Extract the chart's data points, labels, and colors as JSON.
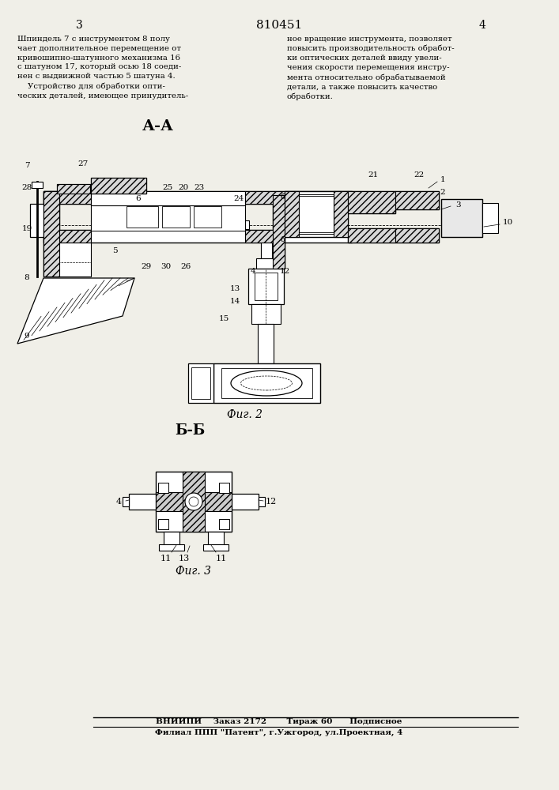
{
  "bg_color": "#f0efe8",
  "page_number_left": "3",
  "page_number_center": "810451",
  "page_number_right": "4",
  "left_text": "Шпиндель 7 с инструментом 8 полу\nчает дополнительное перемещение от\nкривошипно-шатунного механизма 16\nс шатуном 17, который осью 18 соеди-\nнен с выдвижной частью 5 шатуна 4.\n    Устройство для обработки опти-\nческих деталей, имеющее принудитель-",
  "right_text": "ное вращение инструмента, позволяет\nповысить производительность обработ-\nки оптических деталей ввиду увели-\nчения скорости перемещения инстру-\nмента относительно обрабатываемой\nдетали, а также повысить качество\nобработки.",
  "section_label_AA": "А-А",
  "fig2_label": "Фиг. 2",
  "fig3_label": "Фиг. 3",
  "section_label_BB": "Б-Б",
  "footer_line1": "ВНИИПИ    Заказ 2172       Тираж 60      Подписное",
  "footer_line2": "Филиал ППП \"Патент\", г.Ужгород, ул.Проектная, 4"
}
